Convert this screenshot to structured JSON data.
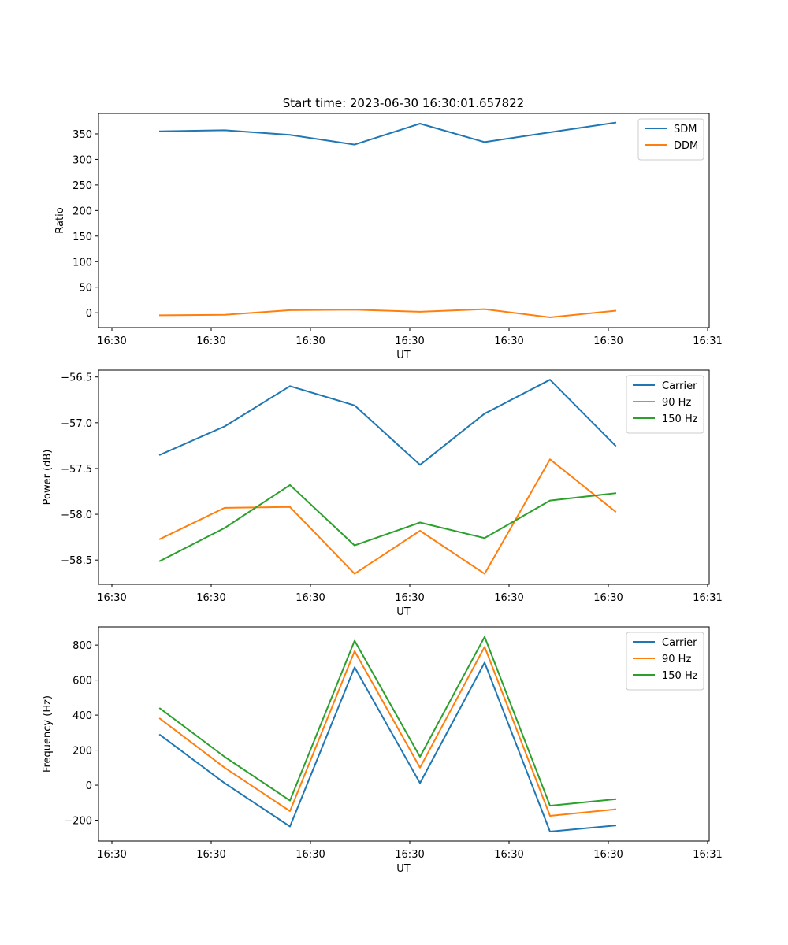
{
  "figure_title": "Start time: 2023-06-30 16:30:01.657822",
  "colors": {
    "blue": "#1f77b4",
    "orange": "#ff7f0e",
    "green": "#2ca02c"
  },
  "chart_data": [
    {
      "type": "line",
      "title": "Start time: 2023-06-30 16:30:01.657822",
      "xlabel": "UT",
      "ylabel": "Ratio",
      "x_tick_labels": [
        "16:30",
        "16:30",
        "16:30",
        "16:30",
        "16:30",
        "16:30",
        "16:31"
      ],
      "y_ticks": [
        0,
        50,
        100,
        150,
        200,
        250,
        300,
        350
      ],
      "y_tick_labels": [
        "0",
        "50",
        "100",
        "150",
        "200",
        "250",
        "300",
        "350"
      ],
      "ylim": [
        -29,
        390
      ],
      "legend_position": "top-right",
      "grid": false,
      "series": [
        {
          "name": "SDM",
          "color": "#1f77b4",
          "values": [
            355,
            357,
            348,
            329,
            370,
            334,
            353,
            372
          ]
        },
        {
          "name": "DDM",
          "color": "#ff7f0e",
          "values": [
            -5,
            -4,
            5,
            6,
            2,
            7,
            -9,
            4
          ]
        }
      ]
    },
    {
      "type": "line",
      "xlabel": "UT",
      "ylabel": "Power (dB)",
      "x_tick_labels": [
        "16:30",
        "16:30",
        "16:30",
        "16:30",
        "16:30",
        "16:30",
        "16:31"
      ],
      "y_ticks": [
        -58.5,
        -58.0,
        -57.5,
        -57.0,
        -56.5
      ],
      "y_tick_labels": [
        "−58.5",
        "−58.0",
        "−57.5",
        "−57.0",
        "−56.5"
      ],
      "ylim": [
        -58.765,
        -56.425
      ],
      "legend_position": "top-right",
      "grid": false,
      "series": [
        {
          "name": "Carrier",
          "color": "#1f77b4",
          "values": [
            -57.35,
            -57.04,
            -56.6,
            -56.81,
            -57.46,
            -56.9,
            -56.53,
            -57.25
          ]
        },
        {
          "name": "90 Hz",
          "color": "#ff7f0e",
          "values": [
            -58.27,
            -57.93,
            -57.92,
            -58.65,
            -58.18,
            -58.65,
            -57.4,
            -57.97
          ]
        },
        {
          "name": "150 Hz",
          "color": "#2ca02c",
          "values": [
            -58.51,
            -58.15,
            -57.68,
            -58.34,
            -58.09,
            -58.26,
            -57.85,
            -57.77
          ]
        }
      ]
    },
    {
      "type": "line",
      "xlabel": "UT",
      "ylabel": "Frequency (Hz)",
      "x_tick_labels": [
        "16:30",
        "16:30",
        "16:30",
        "16:30",
        "16:30",
        "16:30",
        "16:31"
      ],
      "y_ticks": [
        -200,
        0,
        200,
        400,
        600,
        800
      ],
      "y_tick_labels": [
        "−200",
        "0",
        "200",
        "400",
        "600",
        "800"
      ],
      "ylim": [
        -319,
        904
      ],
      "legend_position": "top-right",
      "grid": false,
      "series": [
        {
          "name": "Carrier",
          "color": "#1f77b4",
          "values": [
            287,
            12,
            -236,
            673,
            12,
            700,
            -265,
            -230
          ]
        },
        {
          "name": "90 Hz",
          "color": "#ff7f0e",
          "values": [
            380,
            100,
            -148,
            765,
            100,
            790,
            -175,
            -138
          ]
        },
        {
          "name": "150 Hz",
          "color": "#2ca02c",
          "values": [
            438,
            162,
            -88,
            825,
            162,
            847,
            -117,
            -80
          ]
        }
      ]
    }
  ]
}
